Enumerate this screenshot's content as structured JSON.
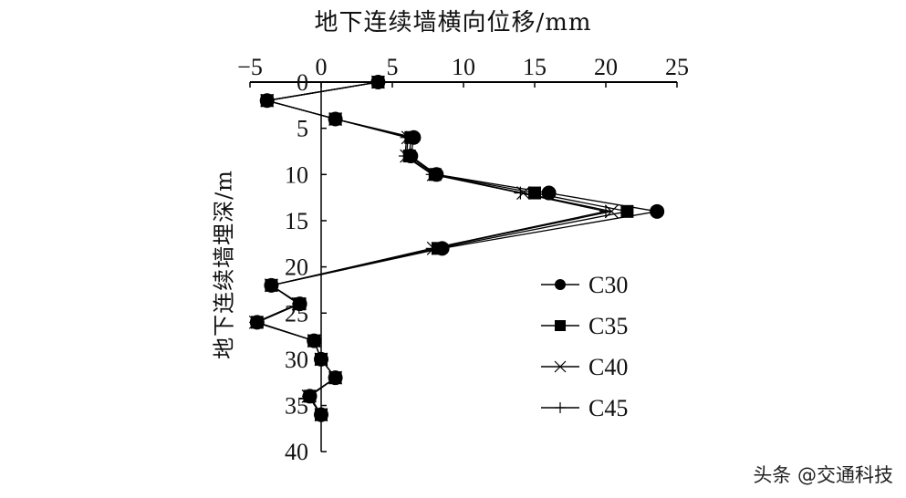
{
  "chart_data": {
    "type": "line",
    "title": "地下连续墙横向位移/mm",
    "xlabel": "地下连续墙横向位移/mm",
    "ylabel": "地下连续墙埋深/m",
    "xlim": [
      -5,
      25
    ],
    "ylim": [
      0,
      40
    ],
    "y_inverted": true,
    "x_axis_position": "top",
    "x_ticks": [
      -5,
      0,
      5,
      10,
      15,
      20,
      25
    ],
    "y_ticks": [
      0,
      5,
      10,
      15,
      20,
      25,
      30,
      35,
      40
    ],
    "grid": false,
    "legend_position": "right-lower",
    "depth": [
      0,
      2,
      4,
      6,
      8,
      10,
      12,
      14,
      18,
      22,
      24,
      26,
      28,
      30,
      32,
      34,
      36
    ],
    "series": [
      {
        "name": "C30",
        "marker": "circle",
        "values": [
          4.0,
          -3.8,
          1.0,
          6.5,
          6.3,
          8.1,
          16.0,
          23.6,
          8.5,
          -3.5,
          -1.5,
          -4.5,
          -0.5,
          0.0,
          1.0,
          -0.8,
          0.0
        ]
      },
      {
        "name": "C35",
        "marker": "square",
        "values": [
          4.0,
          -3.8,
          1.0,
          6.3,
          6.2,
          8.0,
          15.0,
          21.5,
          8.2,
          -3.5,
          -1.5,
          -4.5,
          -0.5,
          0.0,
          1.0,
          -0.8,
          0.0
        ]
      },
      {
        "name": "C40",
        "marker": "x",
        "values": [
          4.0,
          -3.8,
          1.0,
          6.1,
          6.0,
          7.9,
          14.2,
          20.4,
          7.9,
          -3.5,
          -1.6,
          -4.6,
          -0.5,
          0.0,
          1.0,
          -0.9,
          0.0
        ]
      },
      {
        "name": "C45",
        "marker": "plus",
        "values": [
          4.0,
          -3.8,
          1.0,
          6.0,
          5.9,
          7.8,
          14.0,
          20.0,
          7.8,
          -3.5,
          -1.6,
          -4.6,
          -0.5,
          0.0,
          1.0,
          -0.9,
          0.0
        ]
      }
    ]
  },
  "labels": {
    "title": "地下连续墙横向位移/mm",
    "ylabel": "地下连续墙埋深/m",
    "watermark": "头条 @交通科技"
  }
}
